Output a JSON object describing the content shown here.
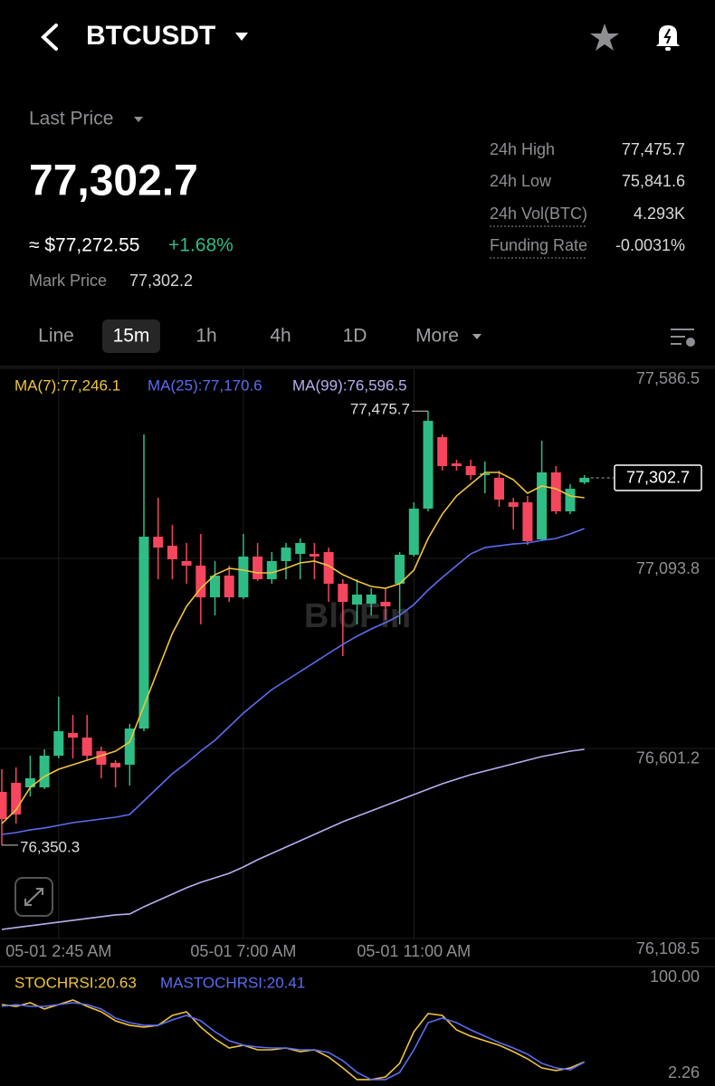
{
  "header": {
    "symbol": "BTCUSDT"
  },
  "price": {
    "label": "Last Price",
    "last": "77,302.7",
    "usd": "≈ $77,272.55",
    "change": "+1.68%",
    "mark_label": "Mark Price",
    "mark": "77,302.2"
  },
  "stats": [
    {
      "label": "24h High",
      "value": "77,475.7"
    },
    {
      "label": "24h Low",
      "value": "75,841.6"
    },
    {
      "label": "24h Vol(BTC)",
      "value": "4.293K"
    },
    {
      "label": "Funding Rate",
      "value": "-0.0031%"
    }
  ],
  "tabs": {
    "items": [
      "Line",
      "15m",
      "1h",
      "4h",
      "1D",
      "More"
    ],
    "active": 1
  },
  "chart_data": [
    {
      "type": "candlestick",
      "up_color": "#2ebd85",
      "down_color": "#f6465d",
      "watermark": "BloFin",
      "categories": [
        null,
        null,
        null,
        null,
        "05-01 2:45 AM",
        null,
        null,
        null,
        null,
        null,
        null,
        null,
        null,
        null,
        null,
        null,
        null,
        "05-01 7:00 AM",
        null,
        null,
        null,
        null,
        null,
        null,
        null,
        null,
        null,
        null,
        null,
        "05-01 11:00 AM",
        null,
        null,
        null,
        null,
        null,
        null,
        null,
        null,
        null,
        null,
        null,
        null
      ],
      "open": [
        76488.6,
        76512.0,
        76500.3,
        76500.3,
        76582.4,
        76641.1,
        76629.3,
        76594.1,
        76563.7,
        76559.0,
        76652.8,
        77150.1,
        77126.6,
        77086.8,
        77075.0,
        76992.9,
        77049.2,
        76992.9,
        77098.5,
        77039.8,
        77086.8,
        77105.5,
        77105.5,
        77110.2,
        77028.1,
        76974.2,
        76976.5,
        76981.2,
        77028.1,
        77103.2,
        77222.8,
        77408.1,
        77340.1,
        77333.1,
        77309.6,
        77302.6,
        77239.2,
        77239.2,
        77143.1,
        77316.7,
        77215.8,
        77290.8
      ],
      "high": [
        76547.2,
        76551.9,
        76582.4,
        76598.8,
        76734.9,
        76688.0,
        76688.0,
        76605.9,
        76570.7,
        76664.5,
        77415.2,
        77251.0,
        77180.6,
        77133.7,
        77157.1,
        77086.8,
        77075.0,
        77157.1,
        77133.7,
        77110.2,
        77133.7,
        77145.4,
        77133.7,
        77121.9,
        77039.8,
        77039.8,
        77016.4,
        77016.4,
        77110.2,
        77239.2,
        77475.7,
        77415.2,
        77349.5,
        77349.5,
        77344.8,
        77321.3,
        77251.0,
        77255.7,
        77398.8,
        77333.1,
        77286.2,
        77309.6
      ],
      "low": [
        76350.3,
        76406.5,
        76476.9,
        76495.6,
        76575.4,
        76575.4,
        76570.7,
        76523.8,
        76500.3,
        76505.0,
        76645.8,
        77039.8,
        77039.8,
        77028.1,
        76922.6,
        76946.0,
        76981.2,
        76988.2,
        77035.2,
        77028.1,
        77039.8,
        77039.8,
        77039.8,
        76981.2,
        76840.5,
        76922.6,
        76946.0,
        76934.3,
        76922.6,
        77098.5,
        77215.8,
        77321.3,
        77321.3,
        77297.9,
        77262.7,
        77227.5,
        77168.9,
        77129.0,
        77138.4,
        77208.7,
        77208.7,
        77286.2
      ],
      "close": [
        76418.2,
        76429.9,
        76523.8,
        76582.4,
        76645.8,
        76629.3,
        76582.4,
        76559.0,
        76551.9,
        76652.8,
        77150.1,
        77121.9,
        77091.5,
        77075.0,
        76992.9,
        77049.2,
        76992.9,
        77098.5,
        77039.8,
        77086.8,
        77121.9,
        77133.7,
        77098.5,
        77028.1,
        76981.2,
        77000.0,
        77000.0,
        76969.5,
        77103.2,
        77222.8,
        77450.4,
        77333.1,
        77333.1,
        77309.6,
        77314.3,
        77246.3,
        77227.5,
        77138.4,
        77316.7,
        77215.8,
        77274.4,
        77302.7
      ],
      "high_label": "77,475.7",
      "low_label": "76,350.3",
      "last_label": "77,302.7",
      "series": [
        {
          "name": "MA(7):77,246.1",
          "color": "#f0c43c",
          "values": [
            76406.5,
            76441.7,
            76500.3,
            76528.5,
            76547.2,
            76559.0,
            76570.7,
            76582.4,
            76594.1,
            76617.6,
            76711.4,
            76805.3,
            76899.1,
            76969.5,
            77016.4,
            77051.6,
            77068.0,
            77063.3,
            77056.3,
            77056.3,
            77068.0,
            77082.1,
            77086.8,
            77075.0,
            77051.6,
            77035.2,
            77021.1,
            77016.4,
            77028.1,
            77063.3,
            77145.4,
            77208.7,
            77255.7,
            77286.2,
            77316.7,
            77316.7,
            77297.9,
            77262.7,
            77281.5,
            77274.4,
            77255.7,
            77251.0
          ]
        },
        {
          "name": "MA(25):77,170.6",
          "color": "#5b6cf0",
          "values": [
            76378.3,
            76383.0,
            76390.1,
            76394.8,
            76401.8,
            76408.8,
            76413.5,
            76418.2,
            76422.9,
            76429.9,
            76465.1,
            76500.3,
            76535.5,
            76563.7,
            76594.1,
            76622.3,
            76657.5,
            76692.7,
            76723.2,
            76753.7,
            76777.1,
            76800.6,
            76824.0,
            76847.5,
            76870.9,
            76892.1,
            76910.8,
            76927.2,
            76946.0,
            76974.2,
            77011.7,
            77044.5,
            77075.0,
            77105.5,
            77121.9,
            77126.6,
            77131.3,
            77133.7,
            77140.7,
            77145.4,
            77157.1,
            77171.2
          ]
        },
        {
          "name": "MA(99):76,596.5",
          "color": "#b4b0f0",
          "values": [
            76132.0,
            76136.7,
            76141.4,
            76146.1,
            76150.8,
            76155.5,
            76160.2,
            76164.9,
            76169.6,
            76171.9,
            76190.7,
            76207.1,
            76223.5,
            76239.9,
            76254.0,
            76265.7,
            76277.5,
            76293.9,
            76312.6,
            76329.1,
            76345.5,
            76361.9,
            76378.3,
            76394.8,
            76411.2,
            76425.2,
            76439.3,
            76453.4,
            76467.5,
            76481.5,
            76495.6,
            76509.7,
            76521.4,
            76533.2,
            76542.5,
            76551.9,
            76561.3,
            76570.7,
            76580.1,
            76587.1,
            76594.1,
            76598.8
          ]
        }
      ],
      "ylim": [
        76108.5,
        77586.5
      ],
      "yticks": [
        {
          "value": 76108.5,
          "label": "76,108.5"
        },
        {
          "value": 76601.2,
          "label": "76,601.2"
        },
        {
          "value": 77093.8,
          "label": "77,093.8"
        },
        {
          "value": 77586.5,
          "label": "77,586.5"
        }
      ],
      "grid": true
    },
    {
      "type": "line",
      "series": [
        {
          "name": "STOCHRSI:20.63",
          "color": "#f0c43c",
          "values": [
            74.5,
            72.8,
            76.2,
            70.3,
            74.5,
            78.8,
            72.8,
            67.7,
            59.2,
            55.0,
            53.3,
            55.0,
            64.3,
            67.7,
            53.3,
            42.2,
            33.7,
            36.3,
            32.0,
            32.0,
            33.7,
            30.3,
            32.0,
            25.2,
            15.0,
            4.0,
            4.0,
            6.5,
            19.3,
            49.0,
            66.0,
            64.3,
            50.7,
            44.8,
            40.5,
            36.3,
            30.3,
            23.5,
            15.0,
            12.5,
            15.0,
            20.63
          ]
        },
        {
          "name": "MASTOCHRSI:20.41",
          "color": "#5b6cf0",
          "values": [
            72.8,
            74.5,
            72.8,
            72.8,
            74.5,
            76.2,
            74.5,
            70.3,
            61.8,
            57.5,
            55.0,
            55.0,
            60.1,
            64.3,
            59.2,
            49.0,
            40.5,
            36.3,
            34.6,
            33.7,
            33.7,
            32.0,
            32.0,
            29.5,
            21.8,
            10.8,
            4.0,
            4.0,
            10.8,
            32.0,
            57.5,
            61.8,
            57.5,
            50.7,
            44.8,
            38.8,
            33.7,
            27.8,
            19.3,
            15.0,
            13.3,
            20.41
          ]
        }
      ],
      "ylim": [
        2.26,
        100
      ],
      "yticks": [
        2.26,
        {
          "value": 100,
          "label": "100.00"
        }
      ],
      "grid": false
    }
  ]
}
